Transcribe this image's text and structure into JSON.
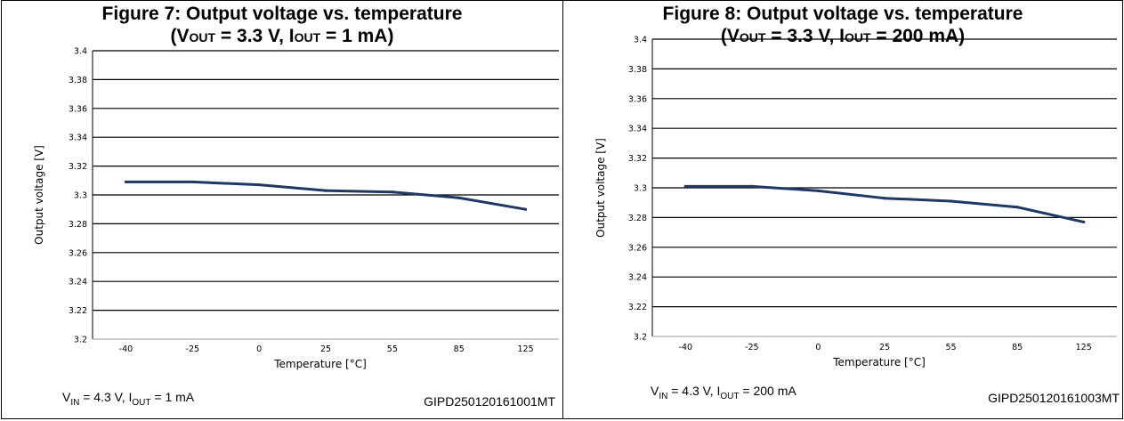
{
  "figures": [
    {
      "title_line1": "Figure 7: Output voltage vs. temperature",
      "title_p1": "(V",
      "title_sub1": "OUT",
      "title_p2": " = 3.3 V, I",
      "title_sub2": "OUT",
      "title_p3": " = 1 mA)",
      "condition": {
        "vin_label": "V",
        "vin_sub": "IN",
        "vin_text": " = 4.3 V, I",
        "iout_sub": "OUT",
        "iout_text": " = 1 mA"
      },
      "code": "GIPD250120161001MT"
    },
    {
      "title_line1": "Figure 8: Output voltage vs. temperature",
      "title_p1": "(V",
      "title_sub1": "OUT",
      "title_p2": " = 3.3 V, I",
      "title_sub2": "OUT",
      "title_p3": " = 200 mA)",
      "condition": {
        "vin_label": "V",
        "vin_sub": "IN",
        "vin_text": " = 4.3 V, I",
        "iout_sub": "OUT",
        "iout_text": " = 200 mA"
      },
      "code": "GIPD250120161003MT"
    }
  ],
  "chart_data": [
    {
      "type": "line",
      "xlabel": "Temperature [°C]",
      "ylabel": "Output voltage [V]",
      "categories": [
        "-40",
        "-25",
        "0",
        "25",
        "55",
        "85",
        "125"
      ],
      "yticks": [
        "3.4",
        "3.38",
        "3.36",
        "3.34",
        "3.32",
        "3.3",
        "3.28",
        "3.26",
        "3.24",
        "3.22",
        "3.2"
      ],
      "ylim": [
        3.2,
        3.4
      ],
      "grid": true,
      "series": [
        {
          "values": [
            3.309,
            3.309,
            3.307,
            3.303,
            3.302,
            3.298,
            3.29
          ],
          "color": "#1f3864"
        }
      ]
    },
    {
      "type": "line",
      "xlabel": "Temperature [°C]",
      "ylabel": "Output voltage [V]",
      "categories": [
        "-40",
        "-25",
        "0",
        "25",
        "55",
        "85",
        "125"
      ],
      "yticks": [
        "3.4",
        "3.38",
        "3.36",
        "3.34",
        "3.32",
        "3.3",
        "3.28",
        "3.26",
        "3.24",
        "3.22",
        "3.2"
      ],
      "ylim": [
        3.2,
        3.4
      ],
      "grid": true,
      "series": [
        {
          "values": [
            3.301,
            3.301,
            3.298,
            3.293,
            3.291,
            3.287,
            3.277
          ],
          "color": "#1f3864"
        }
      ]
    }
  ]
}
